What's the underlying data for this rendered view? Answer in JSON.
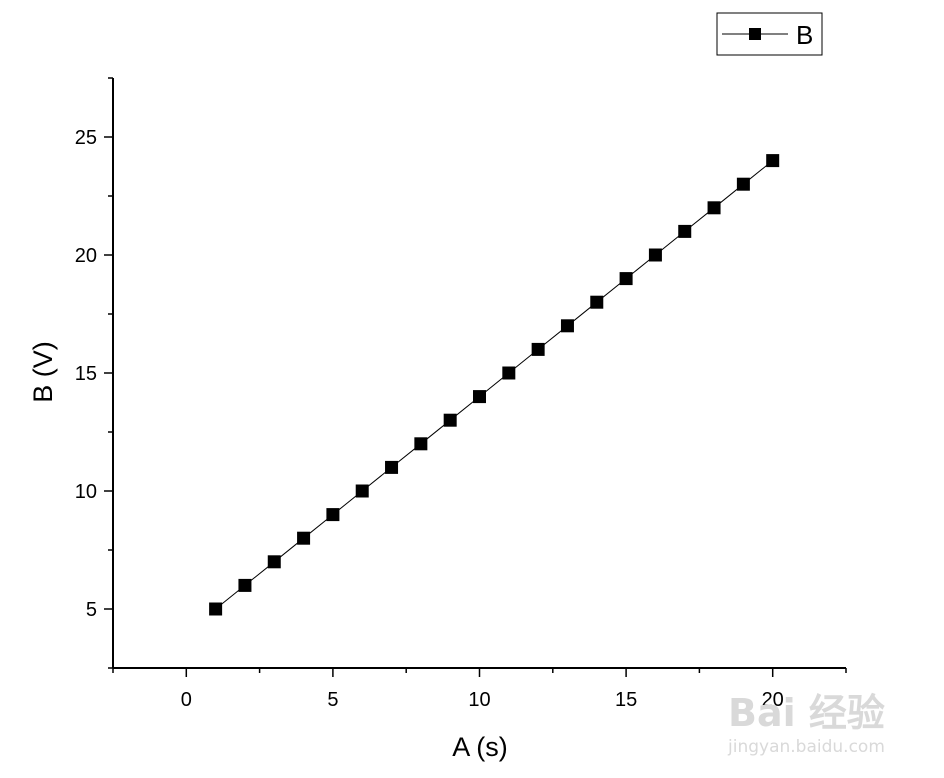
{
  "chart_data": {
    "type": "line",
    "title": "",
    "xlabel": "A (s)",
    "ylabel": "B (V)",
    "xlim": [
      -2.5,
      22.5
    ],
    "ylim": [
      2.5,
      27.5
    ],
    "x_ticks": [
      0,
      5,
      10,
      15,
      20
    ],
    "y_ticks": [
      5,
      10,
      15,
      20,
      25
    ],
    "grid": false,
    "legend_position": "top-right",
    "marker": "square",
    "series": [
      {
        "name": "B",
        "color": "#000000",
        "x": [
          1,
          2,
          3,
          4,
          5,
          6,
          7,
          8,
          9,
          10,
          11,
          12,
          13,
          14,
          15,
          16,
          17,
          18,
          19,
          20
        ],
        "y": [
          5,
          6,
          7,
          8,
          9,
          10,
          11,
          12,
          13,
          14,
          15,
          16,
          17,
          18,
          19,
          20,
          21,
          22,
          23,
          24
        ]
      }
    ]
  },
  "watermark": {
    "brand": "Bai 经验",
    "url": "jingyan.baidu.com"
  }
}
